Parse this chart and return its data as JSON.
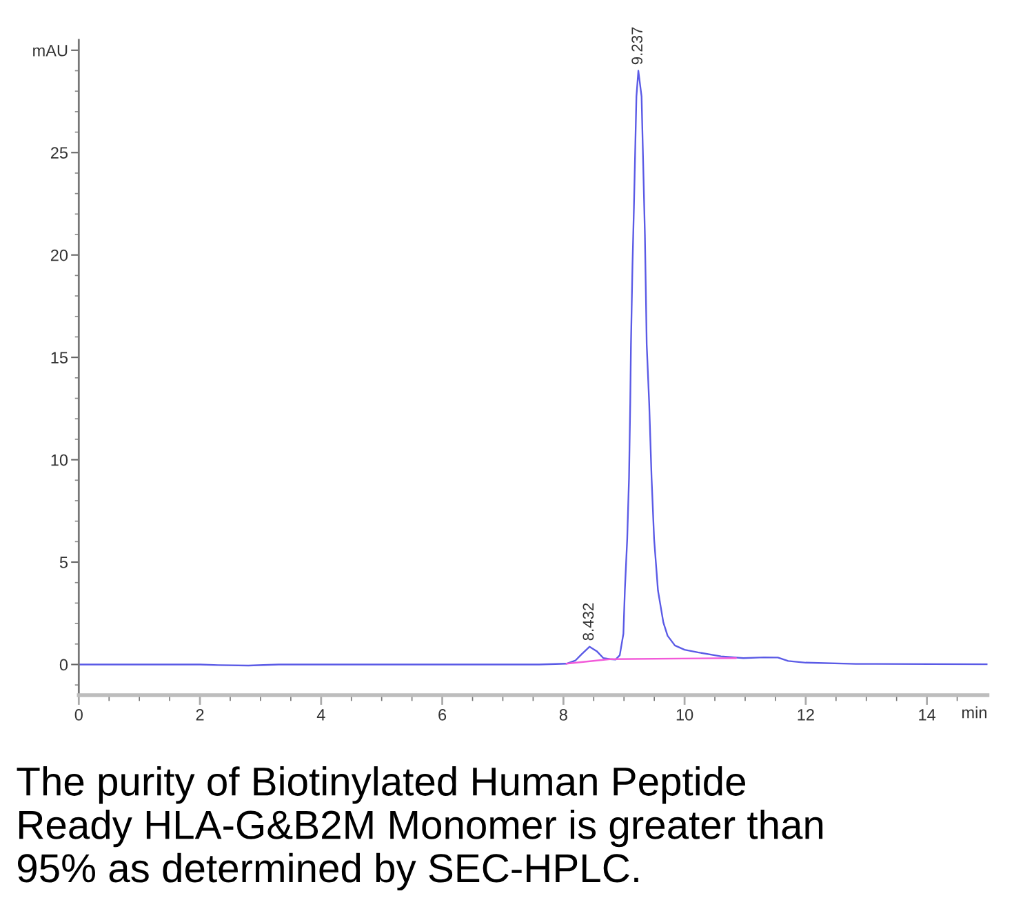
{
  "chart_data": {
    "type": "line",
    "xlabel": "min",
    "xlim": [
      0,
      15
    ],
    "ylim": [
      -1.5,
      30.5
    ],
    "xticks": [
      0,
      {
        "value": 0.5,
        "label": null
      },
      {
        "value": 1,
        "label": null
      },
      {
        "value": 1.5,
        "label": null
      },
      2,
      {
        "value": 2.5,
        "label": null
      },
      {
        "value": 3,
        "label": null
      },
      {
        "value": 3.5,
        "label": null
      },
      4,
      {
        "value": 4.5,
        "label": null
      },
      {
        "value": 5,
        "label": null
      },
      {
        "value": 5.5,
        "label": null
      },
      6,
      {
        "value": 6.5,
        "label": null
      },
      {
        "value": 7,
        "label": null
      },
      {
        "value": 7.5,
        "label": null
      },
      8,
      {
        "value": 8.5,
        "label": null
      },
      {
        "value": 9,
        "label": null
      },
      {
        "value": 9.5,
        "label": null
      },
      10,
      {
        "value": 10.5,
        "label": null
      },
      {
        "value": 11,
        "label": null
      },
      {
        "value": 11.5,
        "label": null
      },
      12,
      {
        "value": 12.5,
        "label": null
      },
      {
        "value": 13,
        "label": null
      },
      {
        "value": 13.5,
        "label": null
      },
      14,
      {
        "value": 14.5,
        "label": null
      }
    ],
    "yticks": [
      {
        "value": -1,
        "label": null
      },
      0,
      {
        "value": 1,
        "label": null
      },
      {
        "value": 2,
        "label": null
      },
      {
        "value": 3,
        "label": null
      },
      {
        "value": 4,
        "label": null
      },
      5,
      {
        "value": 6,
        "label": null
      },
      {
        "value": 7,
        "label": null
      },
      {
        "value": 8,
        "label": null
      },
      {
        "value": 9,
        "label": null
      },
      10,
      {
        "value": 11,
        "label": null
      },
      {
        "value": 12,
        "label": null
      },
      {
        "value": 13,
        "label": null
      },
      {
        "value": 14,
        "label": null
      },
      15,
      {
        "value": 16,
        "label": null
      },
      {
        "value": 17,
        "label": null
      },
      {
        "value": 18,
        "label": null
      },
      {
        "value": 19,
        "label": null
      },
      20,
      {
        "value": 21,
        "label": null
      },
      {
        "value": 22,
        "label": null
      },
      {
        "value": 23,
        "label": null
      },
      {
        "value": 24,
        "label": null
      },
      25,
      {
        "value": 26,
        "label": null
      },
      {
        "value": 27,
        "label": null
      },
      {
        "value": 28,
        "label": null
      },
      {
        "value": 29,
        "label": null
      },
      {
        "value": 30,
        "label": "mAU"
      }
    ],
    "series": [
      {
        "color": "#5a5ae6",
        "x": [
          0,
          1,
          2,
          2.3,
          2.8,
          3.3,
          5,
          7,
          7.6,
          8.05,
          8.2,
          8.3,
          8.432,
          8.55,
          8.66,
          8.77,
          8.86,
          8.93,
          8.99,
          9.014,
          9.053,
          9.083,
          9.103,
          9.115,
          9.14,
          9.164,
          9.205,
          9.237,
          9.29,
          9.334,
          9.345,
          9.375,
          9.416,
          9.455,
          9.497,
          9.561,
          9.65,
          9.72,
          9.84,
          10.0,
          10.22,
          10.6,
          10.97,
          11.31,
          11.54,
          11.71,
          12.0,
          12.83,
          15
        ],
        "values": [
          0,
          0,
          0,
          -0.03,
          -0.05,
          0,
          0,
          0,
          0,
          0.04,
          0.2,
          0.5,
          0.87,
          0.65,
          0.31,
          0.26,
          0.24,
          0.45,
          1.5,
          3.61,
          6.13,
          9.13,
          12.74,
          15.62,
          19.5,
          22.35,
          27.74,
          29.0,
          27.74,
          22.35,
          21.0,
          15.62,
          12.74,
          9.13,
          6.13,
          3.61,
          2.05,
          1.4,
          0.93,
          0.72,
          0.59,
          0.4,
          0.31,
          0.35,
          0.34,
          0.17,
          0.09,
          0.03,
          0.01
        ]
      },
      {
        "color": "#f25ad9",
        "x": [
          8.05,
          8.77,
          10.85
        ],
        "values": [
          0.04,
          0.26,
          0.31
        ]
      }
    ],
    "annotations": [
      {
        "text": "8.432",
        "x": 8.432,
        "y": 0.87
      },
      {
        "text": "9.237",
        "x": 9.237,
        "y": 29.0
      },
      "The purity of Biotinylated Human Peptide Ready HLA-G&B2M Monomer is greater than 95% as determined by SEC-HPLC."
    ]
  }
}
